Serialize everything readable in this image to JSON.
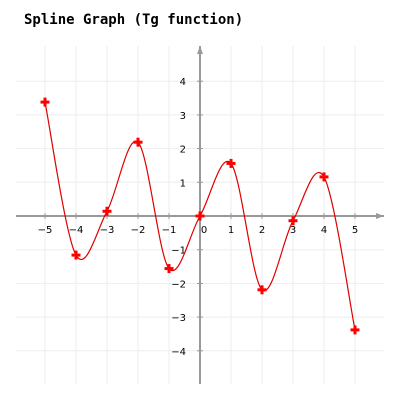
{
  "chart_data": {
    "type": "line",
    "title": "Spline Graph (Tg function)",
    "xlabel": "",
    "ylabel": "",
    "xlim": [
      -6,
      6
    ],
    "ylim": [
      -5,
      5
    ],
    "grid": true,
    "legend": "none",
    "x_ticks": [
      -5,
      -4,
      -3,
      -2,
      -1,
      0,
      1,
      2,
      3,
      4,
      5
    ],
    "y_ticks": [
      -4,
      -3,
      -2,
      -1,
      1,
      2,
      3,
      4
    ],
    "series": [
      {
        "points": [
          {
            "x": -5,
            "y": 3.38
          },
          {
            "x": -4,
            "y": -1.16
          },
          {
            "x": -3,
            "y": 0.14
          },
          {
            "x": -2,
            "y": 2.19
          },
          {
            "x": -1,
            "y": -1.56
          },
          {
            "x": 0,
            "y": 0
          },
          {
            "x": 1,
            "y": 1.56
          },
          {
            "x": 2,
            "y": -2.19
          },
          {
            "x": 3,
            "y": -0.14
          },
          {
            "x": 4,
            "y": 1.16
          },
          {
            "x": 5,
            "y": -3.38
          }
        ],
        "color": "#e00000",
        "marker": "plus",
        "curve": "spline"
      }
    ],
    "colors": {
      "axis": "#999999",
      "grid": "#eeeeee",
      "curve": "#e00000",
      "marker": "#ff0000"
    }
  }
}
